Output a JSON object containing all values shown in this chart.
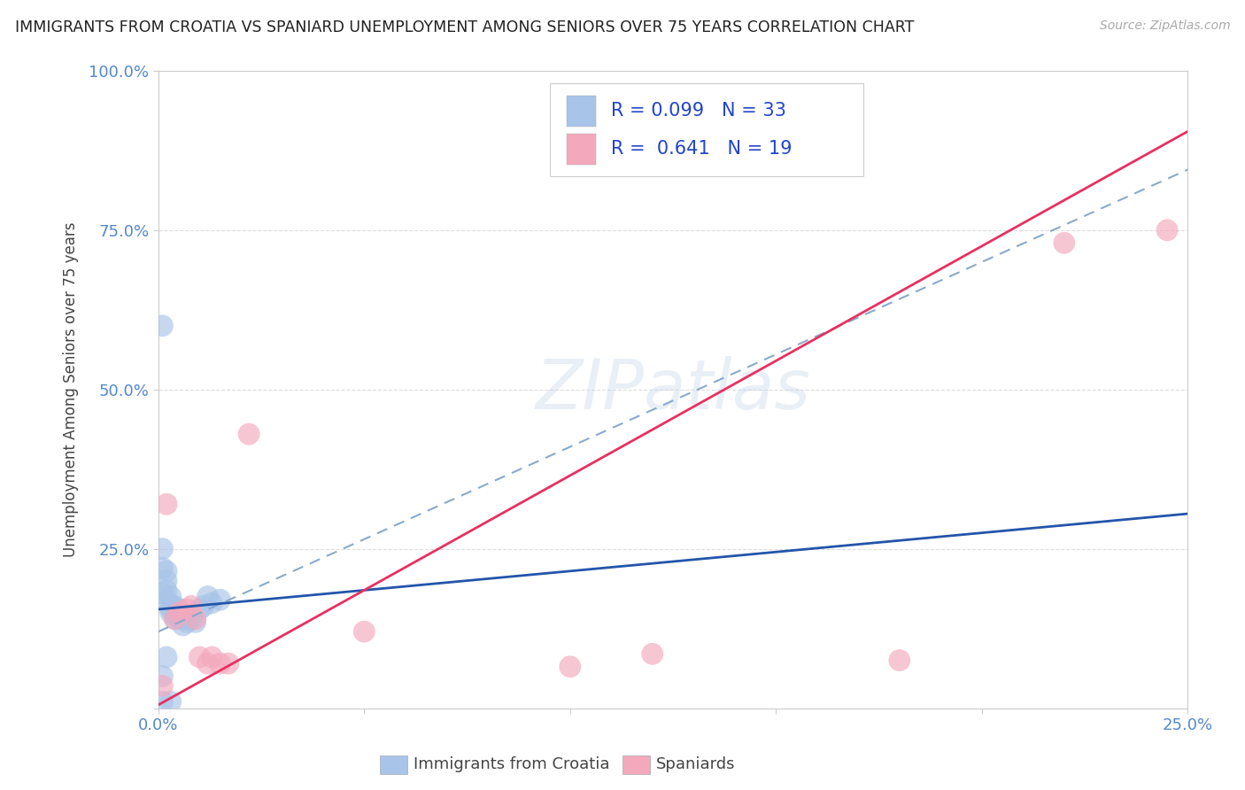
{
  "title": "IMMIGRANTS FROM CROATIA VS SPANIARD UNEMPLOYMENT AMONG SENIORS OVER 75 YEARS CORRELATION CHART",
  "source": "Source: ZipAtlas.com",
  "ylabel_label": "Unemployment Among Seniors over 75 years",
  "watermark": "ZIPatlas",
  "legend_label1": "Immigrants from Croatia",
  "legend_label2": "Spaniards",
  "blue_color": "#a8c4e8",
  "pink_color": "#f4a8bc",
  "blue_line_color": "#2255aa",
  "pink_line_color": "#e83060",
  "dashed_line_color": "#88aacc",
  "title_color": "#222222",
  "axis_tick_color": "#5588cc",
  "ylabel_color": "#444444",
  "r_value_color": "#2244cc",
  "background_color": "#ffffff",
  "grid_color": "#dddddd",
  "croatia_x": [
    0.001,
    0.001,
    0.001,
    0.002,
    0.002,
    0.002,
    0.003,
    0.003,
    0.003,
    0.004,
    0.004,
    0.005,
    0.005,
    0.006,
    0.006,
    0.007,
    0.007,
    0.008,
    0.009,
    0.01,
    0.011,
    0.012,
    0.013,
    0.015,
    0.001,
    0.002,
    0.003,
    0.004,
    0.005,
    0.001,
    0.002,
    0.001,
    0.003
  ],
  "croatia_y": [
    0.6,
    0.25,
    0.22,
    0.215,
    0.2,
    0.185,
    0.175,
    0.16,
    0.15,
    0.155,
    0.14,
    0.155,
    0.145,
    0.14,
    0.13,
    0.145,
    0.135,
    0.14,
    0.135,
    0.155,
    0.16,
    0.175,
    0.165,
    0.17,
    0.18,
    0.17,
    0.155,
    0.16,
    0.14,
    0.05,
    0.08,
    0.01,
    0.01
  ],
  "spaniard_x": [
    0.001,
    0.002,
    0.004,
    0.005,
    0.007,
    0.008,
    0.009,
    0.01,
    0.012,
    0.013,
    0.015,
    0.017,
    0.022,
    0.05,
    0.1,
    0.12,
    0.18,
    0.22,
    0.245
  ],
  "spaniard_y": [
    0.035,
    0.32,
    0.14,
    0.15,
    0.155,
    0.16,
    0.14,
    0.08,
    0.07,
    0.08,
    0.07,
    0.07,
    0.43,
    0.12,
    0.065,
    0.085,
    0.075,
    0.73,
    0.75
  ],
  "xlim": [
    0.0,
    0.25
  ],
  "ylim": [
    0.0,
    1.0
  ],
  "yticks": [
    0.0,
    0.25,
    0.5,
    0.75,
    1.0
  ],
  "ytick_labels": [
    "",
    "25.0%",
    "50.0%",
    "75.0%",
    "100.0%"
  ],
  "xticks": [
    0.0,
    0.05,
    0.1,
    0.15,
    0.2,
    0.25
  ],
  "xtick_labels": [
    "0.0%",
    "",
    "",
    "",
    "",
    "25.0%"
  ],
  "blue_slope": 0.6,
  "blue_intercept": 0.155,
  "pink_slope": 3.6,
  "pink_intercept": 0.005,
  "dash_slope": 2.9,
  "dash_intercept": 0.12
}
